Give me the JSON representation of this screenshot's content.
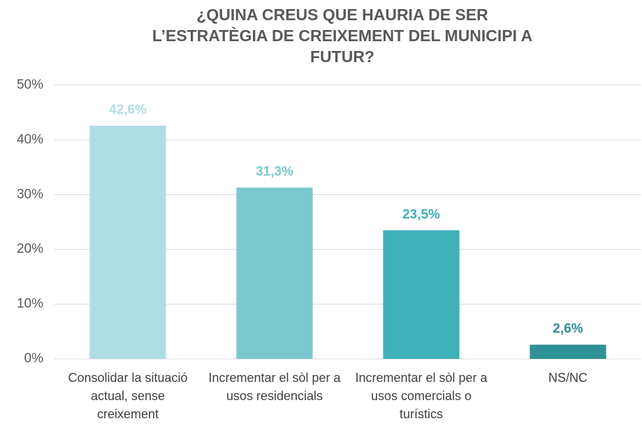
{
  "chart_data": {
    "type": "bar",
    "title": "¿QUINA CREUS QUE HAURIA DE SER L’ESTRATÈGIA DE CREIXEMENT DEL MUNICIPI A FUTUR?",
    "categories": [
      "Consolidar la situació actual, sense creixement",
      "Incrementar el sòl per a usos residencials",
      "Incrementar el sòl per a usos comercials o turístics",
      "NS/NC"
    ],
    "values": [
      42.6,
      31.3,
      23.5,
      2.6
    ],
    "value_labels": [
      "42,6%",
      "31,3%",
      "23,5%",
      "2,6%"
    ],
    "colors": [
      "#b0dde3",
      "#7bc8cf",
      "#3fb1b8",
      "#2e9196"
    ],
    "ylim": [
      0,
      50
    ],
    "yticks": [
      {
        "value": 0,
        "label": "0%"
      },
      {
        "value": 10,
        "label": "10%"
      },
      {
        "value": 20,
        "label": "20%"
      },
      {
        "value": 30,
        "label": "30%"
      },
      {
        "value": 40,
        "label": "40%"
      },
      {
        "value": 50,
        "label": "50%"
      }
    ],
    "grid": true
  }
}
